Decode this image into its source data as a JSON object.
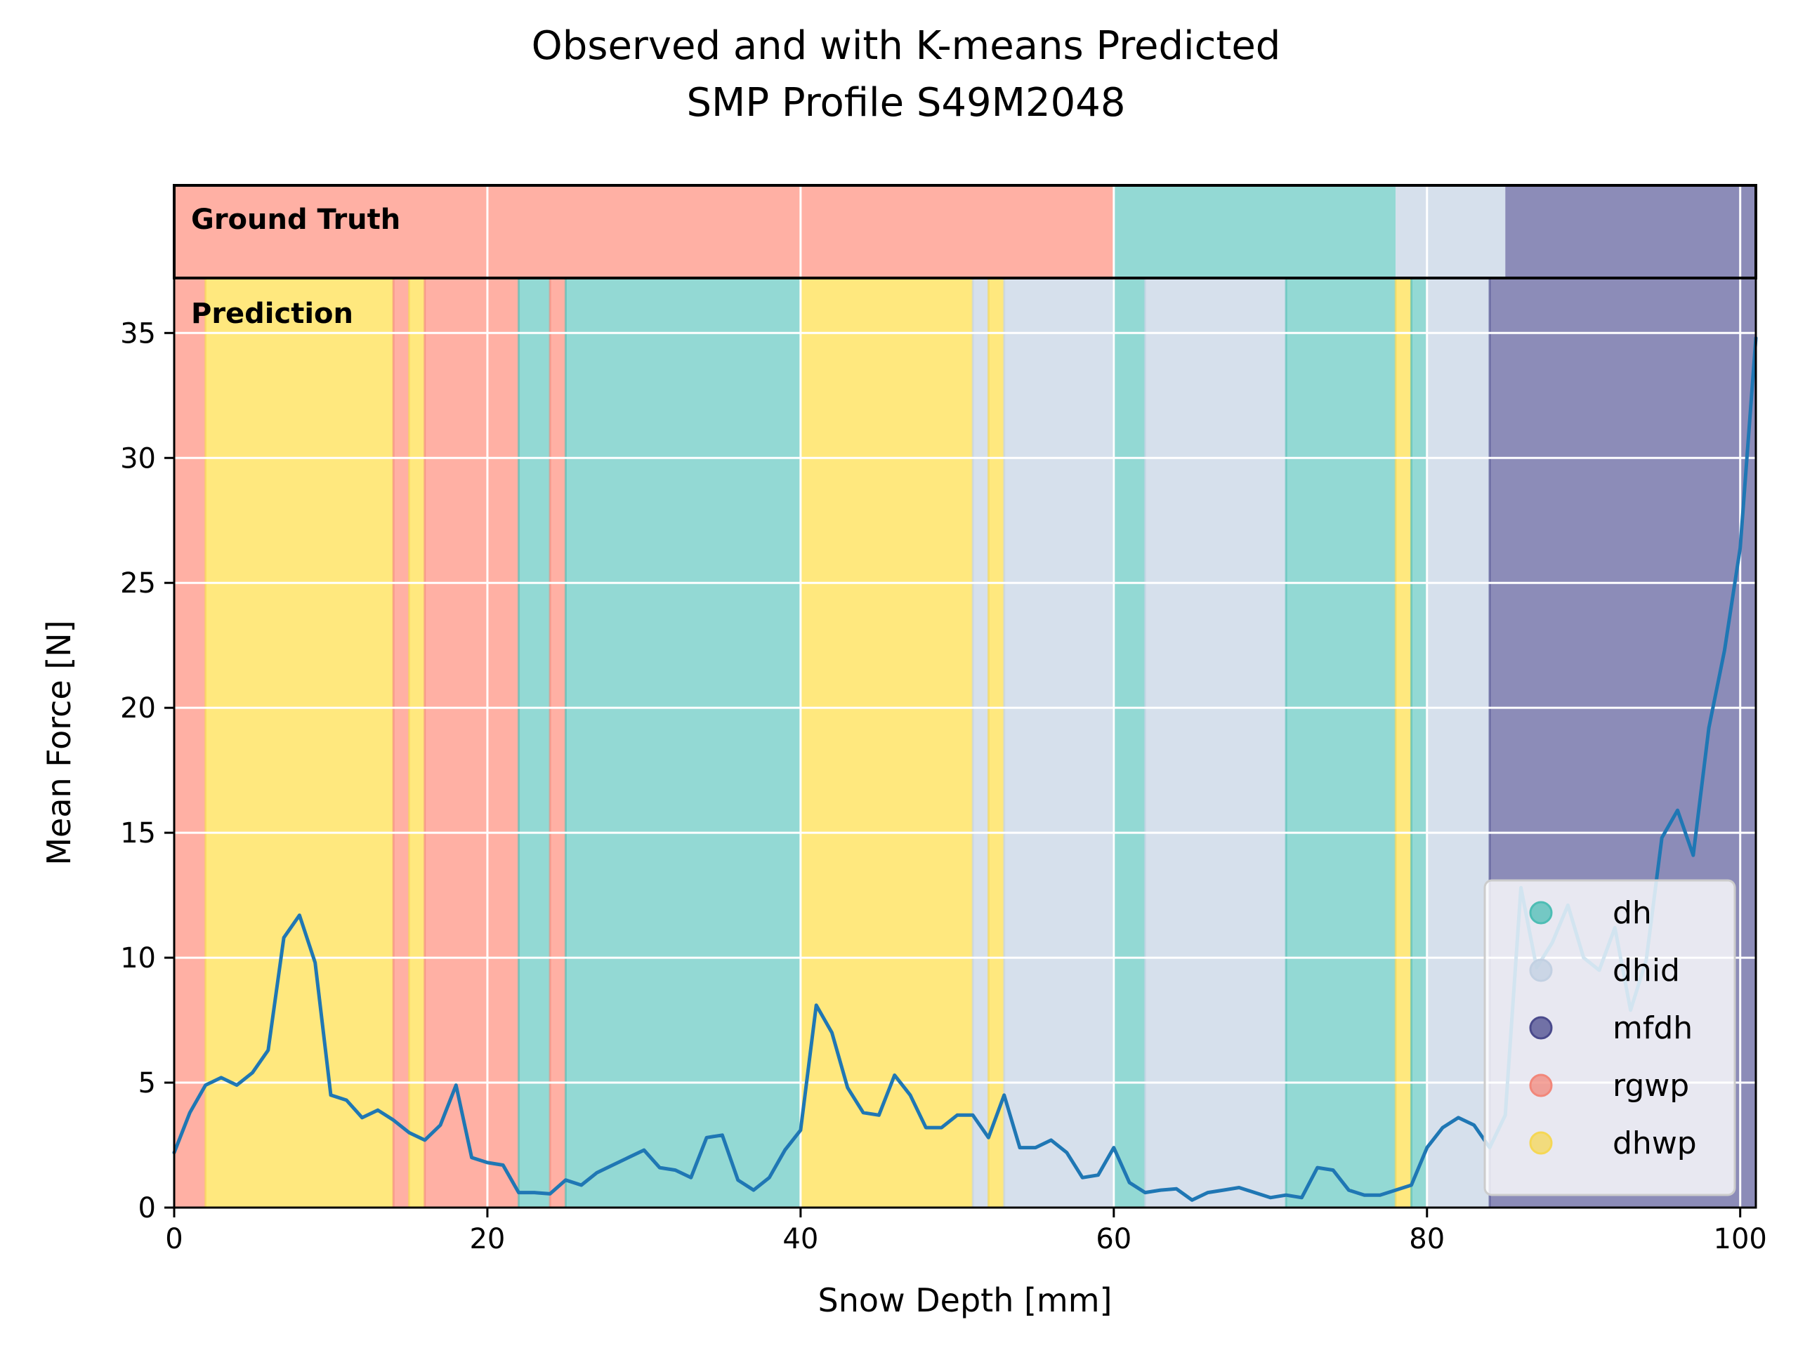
{
  "chart_data": {
    "type": "line",
    "title": "Observed and with K-means Predicted",
    "subtitle": "SMP Profile S49M2048",
    "xlabel": "Snow Depth [mm]",
    "ylabel": "Mean Force [N]",
    "xlim": [
      0,
      101
    ],
    "ylim": [
      0,
      37.2
    ],
    "xticks": [
      "0",
      "20",
      "40",
      "60",
      "80",
      "100"
    ],
    "yticks": [
      "0",
      "5",
      "10",
      "15",
      "20",
      "25",
      "30",
      "35"
    ],
    "grid": true,
    "legend_position": "lower-right",
    "band_labels": {
      "ground_truth": "Ground Truth",
      "prediction": "Prediction"
    },
    "classes": [
      {
        "name": "dh",
        "color": "#93d9d4",
        "marker": "#4dbdb4"
      },
      {
        "name": "dhid",
        "color": "#d6e0ec",
        "marker": "#c2d0e2"
      },
      {
        "name": "mfdh",
        "color": "#8c8cb8",
        "marker": "#4a4a8c"
      },
      {
        "name": "rgwp",
        "color": "#ffb0a4",
        "marker": "#f2877a"
      },
      {
        "name": "dhwp",
        "color": "#ffe87e",
        "marker": "#f5d755"
      }
    ],
    "ground_truth_segments": [
      {
        "start": 0,
        "end": 60,
        "label": "rgwp"
      },
      {
        "start": 60,
        "end": 78,
        "label": "dh"
      },
      {
        "start": 78,
        "end": 85,
        "label": "dhid"
      },
      {
        "start": 85,
        "end": 101,
        "label": "mfdh"
      }
    ],
    "prediction_segments": [
      {
        "start": 0,
        "end": 2,
        "label": "rgwp"
      },
      {
        "start": 2,
        "end": 14,
        "label": "dhwp"
      },
      {
        "start": 14,
        "end": 15,
        "label": "rgwp"
      },
      {
        "start": 15,
        "end": 16,
        "label": "dhwp"
      },
      {
        "start": 16,
        "end": 22,
        "label": "rgwp"
      },
      {
        "start": 22,
        "end": 24,
        "label": "dh"
      },
      {
        "start": 24,
        "end": 25,
        "label": "rgwp"
      },
      {
        "start": 25,
        "end": 40,
        "label": "dh"
      },
      {
        "start": 40,
        "end": 51,
        "label": "dhwp"
      },
      {
        "start": 51,
        "end": 52,
        "label": "dhid"
      },
      {
        "start": 52,
        "end": 53,
        "label": "dhwp"
      },
      {
        "start": 53,
        "end": 60,
        "label": "dhid"
      },
      {
        "start": 60,
        "end": 62,
        "label": "dh"
      },
      {
        "start": 62,
        "end": 71,
        "label": "dhid"
      },
      {
        "start": 71,
        "end": 78,
        "label": "dh"
      },
      {
        "start": 78,
        "end": 79,
        "label": "dhwp"
      },
      {
        "start": 79,
        "end": 80,
        "label": "dh"
      },
      {
        "start": 80,
        "end": 84,
        "label": "dhid"
      },
      {
        "start": 84,
        "end": 101,
        "label": "mfdh"
      }
    ],
    "series": [
      {
        "color": "#1f77b4",
        "x": [
          0,
          1,
          2,
          3,
          4,
          5,
          6,
          7,
          8,
          9,
          10,
          11,
          12,
          13,
          14,
          15,
          16,
          17,
          18,
          19,
          20,
          21,
          22,
          23,
          24,
          25,
          26,
          27,
          28,
          29,
          30,
          31,
          32,
          33,
          34,
          35,
          36,
          37,
          38,
          39,
          40,
          41,
          42,
          43,
          44,
          45,
          46,
          47,
          48,
          49,
          50,
          51,
          52,
          53,
          54,
          55,
          56,
          57,
          58,
          59,
          60,
          61,
          62,
          63,
          64,
          65,
          66,
          67,
          68,
          69,
          70,
          71,
          72,
          73,
          74,
          75,
          76,
          77,
          78,
          79,
          80,
          81,
          82,
          83,
          84,
          85,
          86,
          87,
          88,
          89,
          90,
          91,
          92,
          93,
          94,
          95,
          96,
          97,
          98,
          99,
          100,
          101
        ],
        "y": [
          2.2,
          3.8,
          4.9,
          5.2,
          4.9,
          5.4,
          6.3,
          10.8,
          11.7,
          9.8,
          4.5,
          4.3,
          3.6,
          3.9,
          3.5,
          3.0,
          2.7,
          3.3,
          4.9,
          2.0,
          1.8,
          1.7,
          0.6,
          0.6,
          0.55,
          1.1,
          0.9,
          1.4,
          1.7,
          2.0,
          2.3,
          1.6,
          1.5,
          1.2,
          2.8,
          2.9,
          1.1,
          0.7,
          1.2,
          2.3,
          3.1,
          8.1,
          7.0,
          4.8,
          3.8,
          3.7,
          5.3,
          4.5,
          3.2,
          3.2,
          3.7,
          3.7,
          2.8,
          4.5,
          2.4,
          2.4,
          2.7,
          2.2,
          1.2,
          1.3,
          2.4,
          1.0,
          0.6,
          0.7,
          0.75,
          0.3,
          0.6,
          0.7,
          0.8,
          0.6,
          0.4,
          0.5,
          0.4,
          1.6,
          1.5,
          0.7,
          0.5,
          0.5,
          0.7,
          0.9,
          2.4,
          3.2,
          3.6,
          3.3,
          2.4,
          3.7,
          12.8,
          9.6,
          10.6,
          12.1,
          10.0,
          9.5,
          11.2,
          7.9,
          9.9,
          14.8,
          15.9,
          14.1,
          19.2,
          22.3,
          26.4,
          34.8
        ]
      }
    ]
  }
}
